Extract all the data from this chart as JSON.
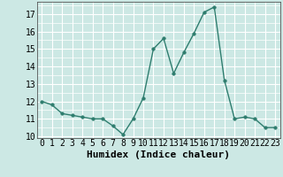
{
  "x": [
    0,
    1,
    2,
    3,
    4,
    5,
    6,
    7,
    8,
    9,
    10,
    11,
    12,
    13,
    14,
    15,
    16,
    17,
    18,
    19,
    20,
    21,
    22,
    23
  ],
  "y": [
    12.0,
    11.8,
    11.3,
    11.2,
    11.1,
    11.0,
    11.0,
    10.6,
    10.1,
    11.0,
    12.2,
    15.0,
    15.6,
    13.6,
    14.8,
    15.9,
    17.1,
    17.4,
    13.2,
    11.0,
    11.1,
    11.0,
    10.5,
    10.5
  ],
  "xlabel": "Humidex (Indice chaleur)",
  "ylim": [
    9.9,
    17.7
  ],
  "xlim": [
    -0.5,
    23.5
  ],
  "yticks": [
    10,
    11,
    12,
    13,
    14,
    15,
    16,
    17
  ],
  "xtick_labels": [
    "0",
    "1",
    "2",
    "3",
    "4",
    "5",
    "6",
    "7",
    "8",
    "9",
    "10",
    "11",
    "12",
    "13",
    "14",
    "15",
    "16",
    "17",
    "18",
    "19",
    "20",
    "21",
    "22",
    "23"
  ],
  "line_color": "#2e7d6e",
  "marker_color": "#2e7d6e",
  "bg_color": "#cce8e4",
  "grid_color": "#ffffff",
  "xlabel_fontsize": 8,
  "tick_fontsize": 7,
  "line_width": 1.0,
  "marker_size": 2.5
}
